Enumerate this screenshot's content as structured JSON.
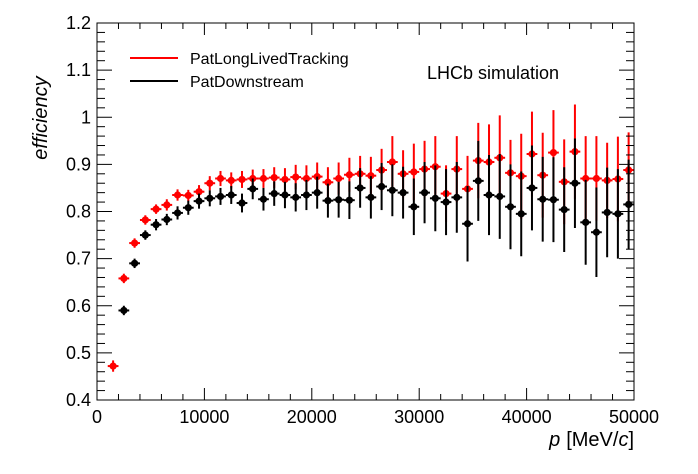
{
  "chart_data": {
    "type": "scatter",
    "xlabel_var": "p",
    "xlabel_unit": "[MeV/",
    "xlabel_unit_var": "c",
    "xlabel_unit_end": "]",
    "ylabel": "efficiency",
    "annotation": "LHCb simulation",
    "xlim": [
      0,
      50000
    ],
    "ylim": [
      0.4,
      1.2
    ],
    "x_ticks": [
      0,
      10000,
      20000,
      30000,
      40000,
      50000
    ],
    "x_tick_labels": [
      "0",
      "10000",
      "20000",
      "30000",
      "40000",
      "50000"
    ],
    "y_ticks": [
      0.4,
      0.5,
      0.6,
      0.7,
      0.8,
      0.9,
      1.0,
      1.1,
      1.2
    ],
    "y_tick_labels": [
      "0.4",
      "0.5",
      "0.6",
      "0.7",
      "0.8",
      "0.9",
      "1",
      "1.1",
      "1.2"
    ],
    "grid": false,
    "legend_position": "top-left",
    "x_bin_half_width": 500,
    "series": [
      {
        "name": "PatLongLivedTracking",
        "color": "#ff0000",
        "x": [
          1500,
          2500,
          3500,
          4500,
          5500,
          6500,
          7500,
          8500,
          9500,
          10500,
          11500,
          12500,
          13500,
          14500,
          15500,
          16500,
          17500,
          18500,
          19500,
          20500,
          21500,
          22500,
          23500,
          24500,
          25500,
          26500,
          27500,
          28500,
          29500,
          30500,
          31500,
          32500,
          33500,
          34500,
          35500,
          36500,
          37500,
          38500,
          39500,
          40500,
          41500,
          42500,
          43500,
          44500,
          45500,
          46500,
          47500,
          48500,
          49500
        ],
        "y": [
          0.472,
          0.658,
          0.733,
          0.782,
          0.805,
          0.814,
          0.835,
          0.834,
          0.842,
          0.86,
          0.87,
          0.866,
          0.868,
          0.87,
          0.87,
          0.872,
          0.868,
          0.873,
          0.87,
          0.874,
          0.862,
          0.87,
          0.878,
          0.88,
          0.876,
          0.888,
          0.905,
          0.88,
          0.884,
          0.89,
          0.895,
          0.838,
          0.89,
          0.848,
          0.908,
          0.905,
          0.914,
          0.882,
          0.875,
          0.922,
          0.877,
          0.925,
          0.863,
          0.927,
          0.87,
          0.87,
          0.866,
          0.869,
          0.888
        ],
        "err": [
          0.012,
          0.01,
          0.01,
          0.01,
          0.01,
          0.012,
          0.012,
          0.012,
          0.014,
          0.015,
          0.016,
          0.017,
          0.018,
          0.019,
          0.02,
          0.022,
          0.024,
          0.026,
          0.028,
          0.03,
          0.032,
          0.034,
          0.036,
          0.038,
          0.04,
          0.045,
          0.055,
          0.05,
          0.06,
          0.06,
          0.065,
          0.06,
          0.07,
          0.07,
          0.08,
          0.08,
          0.09,
          0.07,
          0.09,
          0.09,
          0.09,
          0.09,
          0.09,
          0.1,
          0.09,
          0.09,
          0.08,
          0.09,
          0.08
        ]
      },
      {
        "name": "PatDownstream",
        "color": "#000000",
        "x": [
          2500,
          3500,
          4500,
          5500,
          6500,
          7500,
          8500,
          9500,
          10500,
          11500,
          12500,
          13500,
          14500,
          15500,
          16500,
          17500,
          18500,
          19500,
          20500,
          21500,
          22500,
          23500,
          24500,
          25500,
          26500,
          27500,
          28500,
          29500,
          30500,
          31500,
          32500,
          33500,
          34500,
          35500,
          36500,
          37500,
          38500,
          39500,
          40500,
          41500,
          42500,
          43500,
          44500,
          45500,
          46500,
          47500,
          48500,
          49500
        ],
        "y": [
          0.59,
          0.69,
          0.75,
          0.772,
          0.783,
          0.797,
          0.808,
          0.822,
          0.828,
          0.832,
          0.835,
          0.818,
          0.848,
          0.826,
          0.838,
          0.835,
          0.83,
          0.835,
          0.84,
          0.823,
          0.825,
          0.824,
          0.85,
          0.83,
          0.853,
          0.845,
          0.84,
          0.81,
          0.84,
          0.828,
          0.82,
          0.83,
          0.774,
          0.865,
          0.835,
          0.832,
          0.81,
          0.795,
          0.85,
          0.826,
          0.825,
          0.804,
          0.86,
          0.777,
          0.756,
          0.798,
          0.795,
          0.815
        ],
        "err": [
          0.01,
          0.01,
          0.01,
          0.012,
          0.012,
          0.014,
          0.015,
          0.016,
          0.017,
          0.018,
          0.019,
          0.02,
          0.022,
          0.024,
          0.026,
          0.028,
          0.03,
          0.032,
          0.034,
          0.036,
          0.038,
          0.04,
          0.042,
          0.045,
          0.05,
          0.055,
          0.055,
          0.06,
          0.065,
          0.07,
          0.07,
          0.075,
          0.08,
          0.085,
          0.085,
          0.09,
          0.09,
          0.09,
          0.09,
          0.09,
          0.09,
          0.09,
          0.095,
          0.09,
          0.095,
          0.095,
          0.095,
          0.095
        ]
      }
    ]
  }
}
